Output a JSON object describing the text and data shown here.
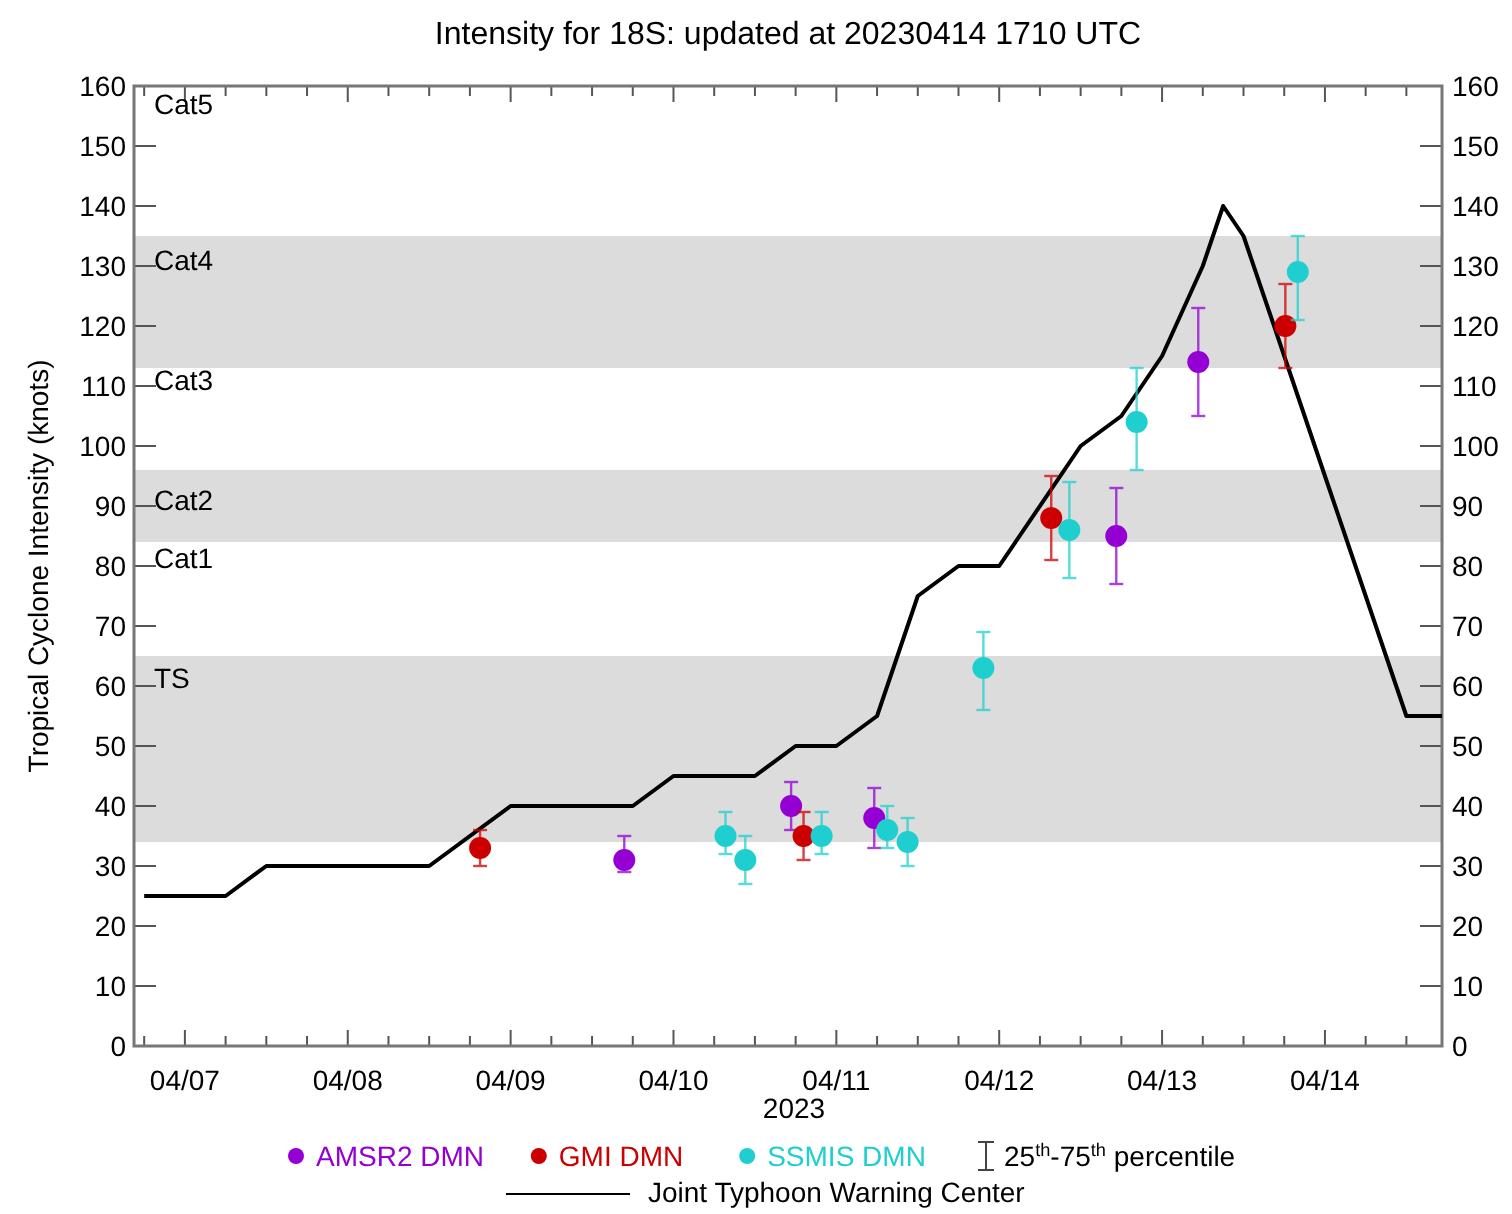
{
  "chart_data": {
    "type": "scatter",
    "title": "Intensity for 18S: updated at 20230414 1710 UTC",
    "xlabel": "2023",
    "ylabel": "Tropical Cyclone Intensity (knots)",
    "xlim": [
      "2023-04-06T16:30",
      "2023-04-14T17:15"
    ],
    "xticks": [
      {
        "value": "2023-04-06T18:00",
        "label": null
      },
      {
        "value": "2023-04-07",
        "label": "04/07"
      },
      {
        "value": "2023-04-07T06:00",
        "label": null
      },
      {
        "value": "2023-04-07T12:00",
        "label": null
      },
      {
        "value": "2023-04-07T18:00",
        "label": null
      },
      {
        "value": "2023-04-08",
        "label": "04/08"
      },
      {
        "value": "2023-04-08T06:00",
        "label": null
      },
      {
        "value": "2023-04-08T12:00",
        "label": null
      },
      {
        "value": "2023-04-08T18:00",
        "label": null
      },
      {
        "value": "2023-04-09",
        "label": "04/09"
      },
      {
        "value": "2023-04-09T06:00",
        "label": null
      },
      {
        "value": "2023-04-09T12:00",
        "label": null
      },
      {
        "value": "2023-04-09T18:00",
        "label": null
      },
      {
        "value": "2023-04-10",
        "label": "04/10"
      },
      {
        "value": "2023-04-10T06:00",
        "label": null
      },
      {
        "value": "2023-04-10T12:00",
        "label": null
      },
      {
        "value": "2023-04-10T18:00",
        "label": null
      },
      {
        "value": "2023-04-11",
        "label": "04/11"
      },
      {
        "value": "2023-04-11T06:00",
        "label": null
      },
      {
        "value": "2023-04-11T12:00",
        "label": null
      },
      {
        "value": "2023-04-11T18:00",
        "label": null
      },
      {
        "value": "2023-04-12",
        "label": "04/12"
      },
      {
        "value": "2023-04-12T06:00",
        "label": null
      },
      {
        "value": "2023-04-12T12:00",
        "label": null
      },
      {
        "value": "2023-04-12T18:00",
        "label": null
      },
      {
        "value": "2023-04-13",
        "label": "04/13"
      },
      {
        "value": "2023-04-13T06:00",
        "label": null
      },
      {
        "value": "2023-04-13T12:00",
        "label": null
      },
      {
        "value": "2023-04-13T18:00",
        "label": null
      },
      {
        "value": "2023-04-14",
        "label": "04/14"
      },
      {
        "value": "2023-04-14T06:00",
        "label": null
      },
      {
        "value": "2023-04-14T12:00",
        "label": null
      }
    ],
    "ylim": [
      0,
      160
    ],
    "yticks": [
      0,
      10,
      20,
      30,
      40,
      50,
      60,
      70,
      80,
      90,
      100,
      110,
      120,
      130,
      140,
      150,
      160
    ],
    "y2lim": [
      0,
      160
    ],
    "y2ticks": [
      0,
      10,
      20,
      30,
      40,
      50,
      60,
      70,
      80,
      90,
      100,
      110,
      120,
      130,
      140,
      150,
      160
    ],
    "grid": false,
    "legend": "bottom",
    "marker": "circle",
    "bands": [
      {
        "axis": "y",
        "from": 34,
        "to": 65,
        "color": "#dcdcdc"
      },
      {
        "axis": "y",
        "from": 84,
        "to": 96,
        "color": "#dcdcdc"
      },
      {
        "axis": "y",
        "from": 113,
        "to": 135,
        "color": "#dcdcdc"
      }
    ],
    "annotations": [
      "Cat5",
      "Cat4",
      "Cat3",
      "Cat2",
      "Cat1",
      "TS",
      "25$^{th}$-75$^{th}$ percentile"
    ],
    "series": [
      {
        "name": "AMSR2 DMN",
        "color": "#9400d3",
        "x": [
          "2023-04-09T16:45",
          "2023-04-10T17:20",
          "2023-04-11T05:35",
          "2023-04-12T17:15",
          "2023-04-13T05:20"
        ],
        "values": [
          31,
          40,
          38,
          85,
          114
        ],
        "errors": [
          [
            29,
            35
          ],
          [
            36,
            44
          ],
          [
            33,
            43
          ],
          [
            77,
            93
          ],
          [
            105,
            123
          ]
        ]
      },
      {
        "name": "GMI DMN",
        "color": "#cc0000",
        "x": [
          "2023-04-08T19:30",
          "2023-04-10T19:10",
          "2023-04-12T07:40",
          "2023-04-13T18:10"
        ],
        "values": [
          33,
          35,
          88,
          120
        ],
        "errors": [
          [
            30,
            36
          ],
          [
            31,
            39
          ],
          [
            81,
            95
          ],
          [
            113,
            127
          ]
        ]
      },
      {
        "name": "SSMIS DMN",
        "color": "#1fcfcf",
        "x": [
          "2023-04-10T07:40",
          "2023-04-10T10:35",
          "2023-04-10T21:50",
          "2023-04-11T07:30",
          "2023-04-11T10:30",
          "2023-04-11T21:40",
          "2023-04-12T10:20",
          "2023-04-12T20:15",
          "2023-04-13T20:00"
        ],
        "values": [
          35,
          31,
          35,
          36,
          34,
          63,
          86,
          104,
          129
        ],
        "errors": [
          [
            32,
            39
          ],
          [
            27,
            35
          ],
          [
            32,
            39
          ],
          [
            33,
            40
          ],
          [
            30,
            38
          ],
          [
            56,
            69
          ],
          [
            78,
            94
          ],
          [
            96,
            113
          ],
          [
            121,
            135
          ]
        ]
      },
      {
        "name": "Joint Typhoon Warning Center",
        "type": "line",
        "marker": "none",
        "color": "#000000",
        "x": [
          "2023-04-06T18:00",
          "2023-04-07T06:00",
          "2023-04-07T12:00",
          "2023-04-08T12:00",
          "2023-04-09",
          "2023-04-09T18:00",
          "2023-04-10",
          "2023-04-10T12:00",
          "2023-04-10T18:00",
          "2023-04-11",
          "2023-04-11T06:00",
          "2023-04-11T12:00",
          "2023-04-11T18:00",
          "2023-04-12",
          "2023-04-12T12:00",
          "2023-04-12T18:00",
          "2023-04-13",
          "2023-04-13T06:00",
          "2023-04-13T09:00",
          "2023-04-13T12:00",
          "2023-04-13T18:00",
          "2023-04-14",
          "2023-04-14T06:00",
          "2023-04-14T12:00",
          "2023-04-14T17:15"
        ],
        "values": [
          25,
          25,
          30,
          30,
          40,
          40,
          45,
          45,
          50,
          50,
          55,
          75,
          80,
          80,
          100,
          105,
          115,
          130,
          140,
          135,
          115,
          95,
          75,
          55,
          55
        ]
      }
    ]
  }
}
